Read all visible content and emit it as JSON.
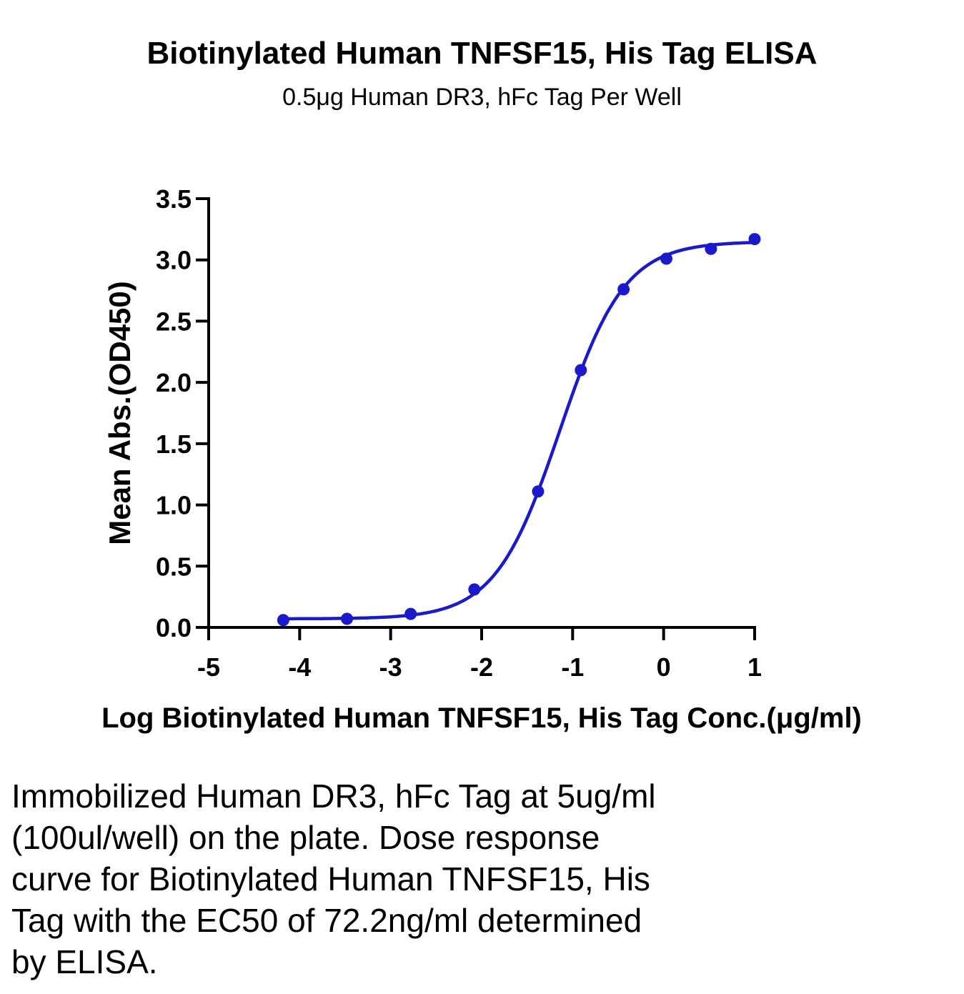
{
  "chart_data": {
    "type": "scatter",
    "title": "Biotinylated Human TNFSF15, His Tag ELISA",
    "subtitle": "0.5μg Human DR3, hFc Tag Per Well",
    "xlabel": "Log Biotinylated Human TNFSF15, His Tag Conc.(μg/ml)",
    "ylabel": "Mean Abs.(OD450)",
    "xlim": [
      -5,
      1
    ],
    "ylim": [
      0,
      3.5
    ],
    "xticks": [
      "-5",
      "-4",
      "-3",
      "-2",
      "-1",
      "0",
      "1"
    ],
    "yticks": [
      "0.0",
      "0.5",
      "1.0",
      "1.5",
      "2.0",
      "2.5",
      "3.0",
      "3.5"
    ],
    "grid": false,
    "color": "#1a1acc",
    "series": [
      {
        "x": [
          -4.18,
          -3.48,
          -2.78,
          -2.08,
          -1.38,
          -0.91,
          -0.44,
          0.03,
          0.52,
          1.0
        ],
        "y": [
          0.06,
          0.07,
          0.11,
          0.31,
          1.11,
          2.1,
          2.76,
          3.01,
          3.09,
          3.17
        ]
      }
    ],
    "fit": {
      "bottom": 0.07,
      "top": 3.15,
      "logEC50": -1.14,
      "hill": 1.22
    }
  },
  "caption": {
    "lines": [
      "Immobilized Human DR3, hFc Tag at 5ug/ml",
      "(100ul/well) on the plate. Dose response",
      "curve for Biotinylated Human TNFSF15, His",
      "Tag with the EC50 of 72.2ng/ml determined",
      "by ELISA."
    ]
  }
}
